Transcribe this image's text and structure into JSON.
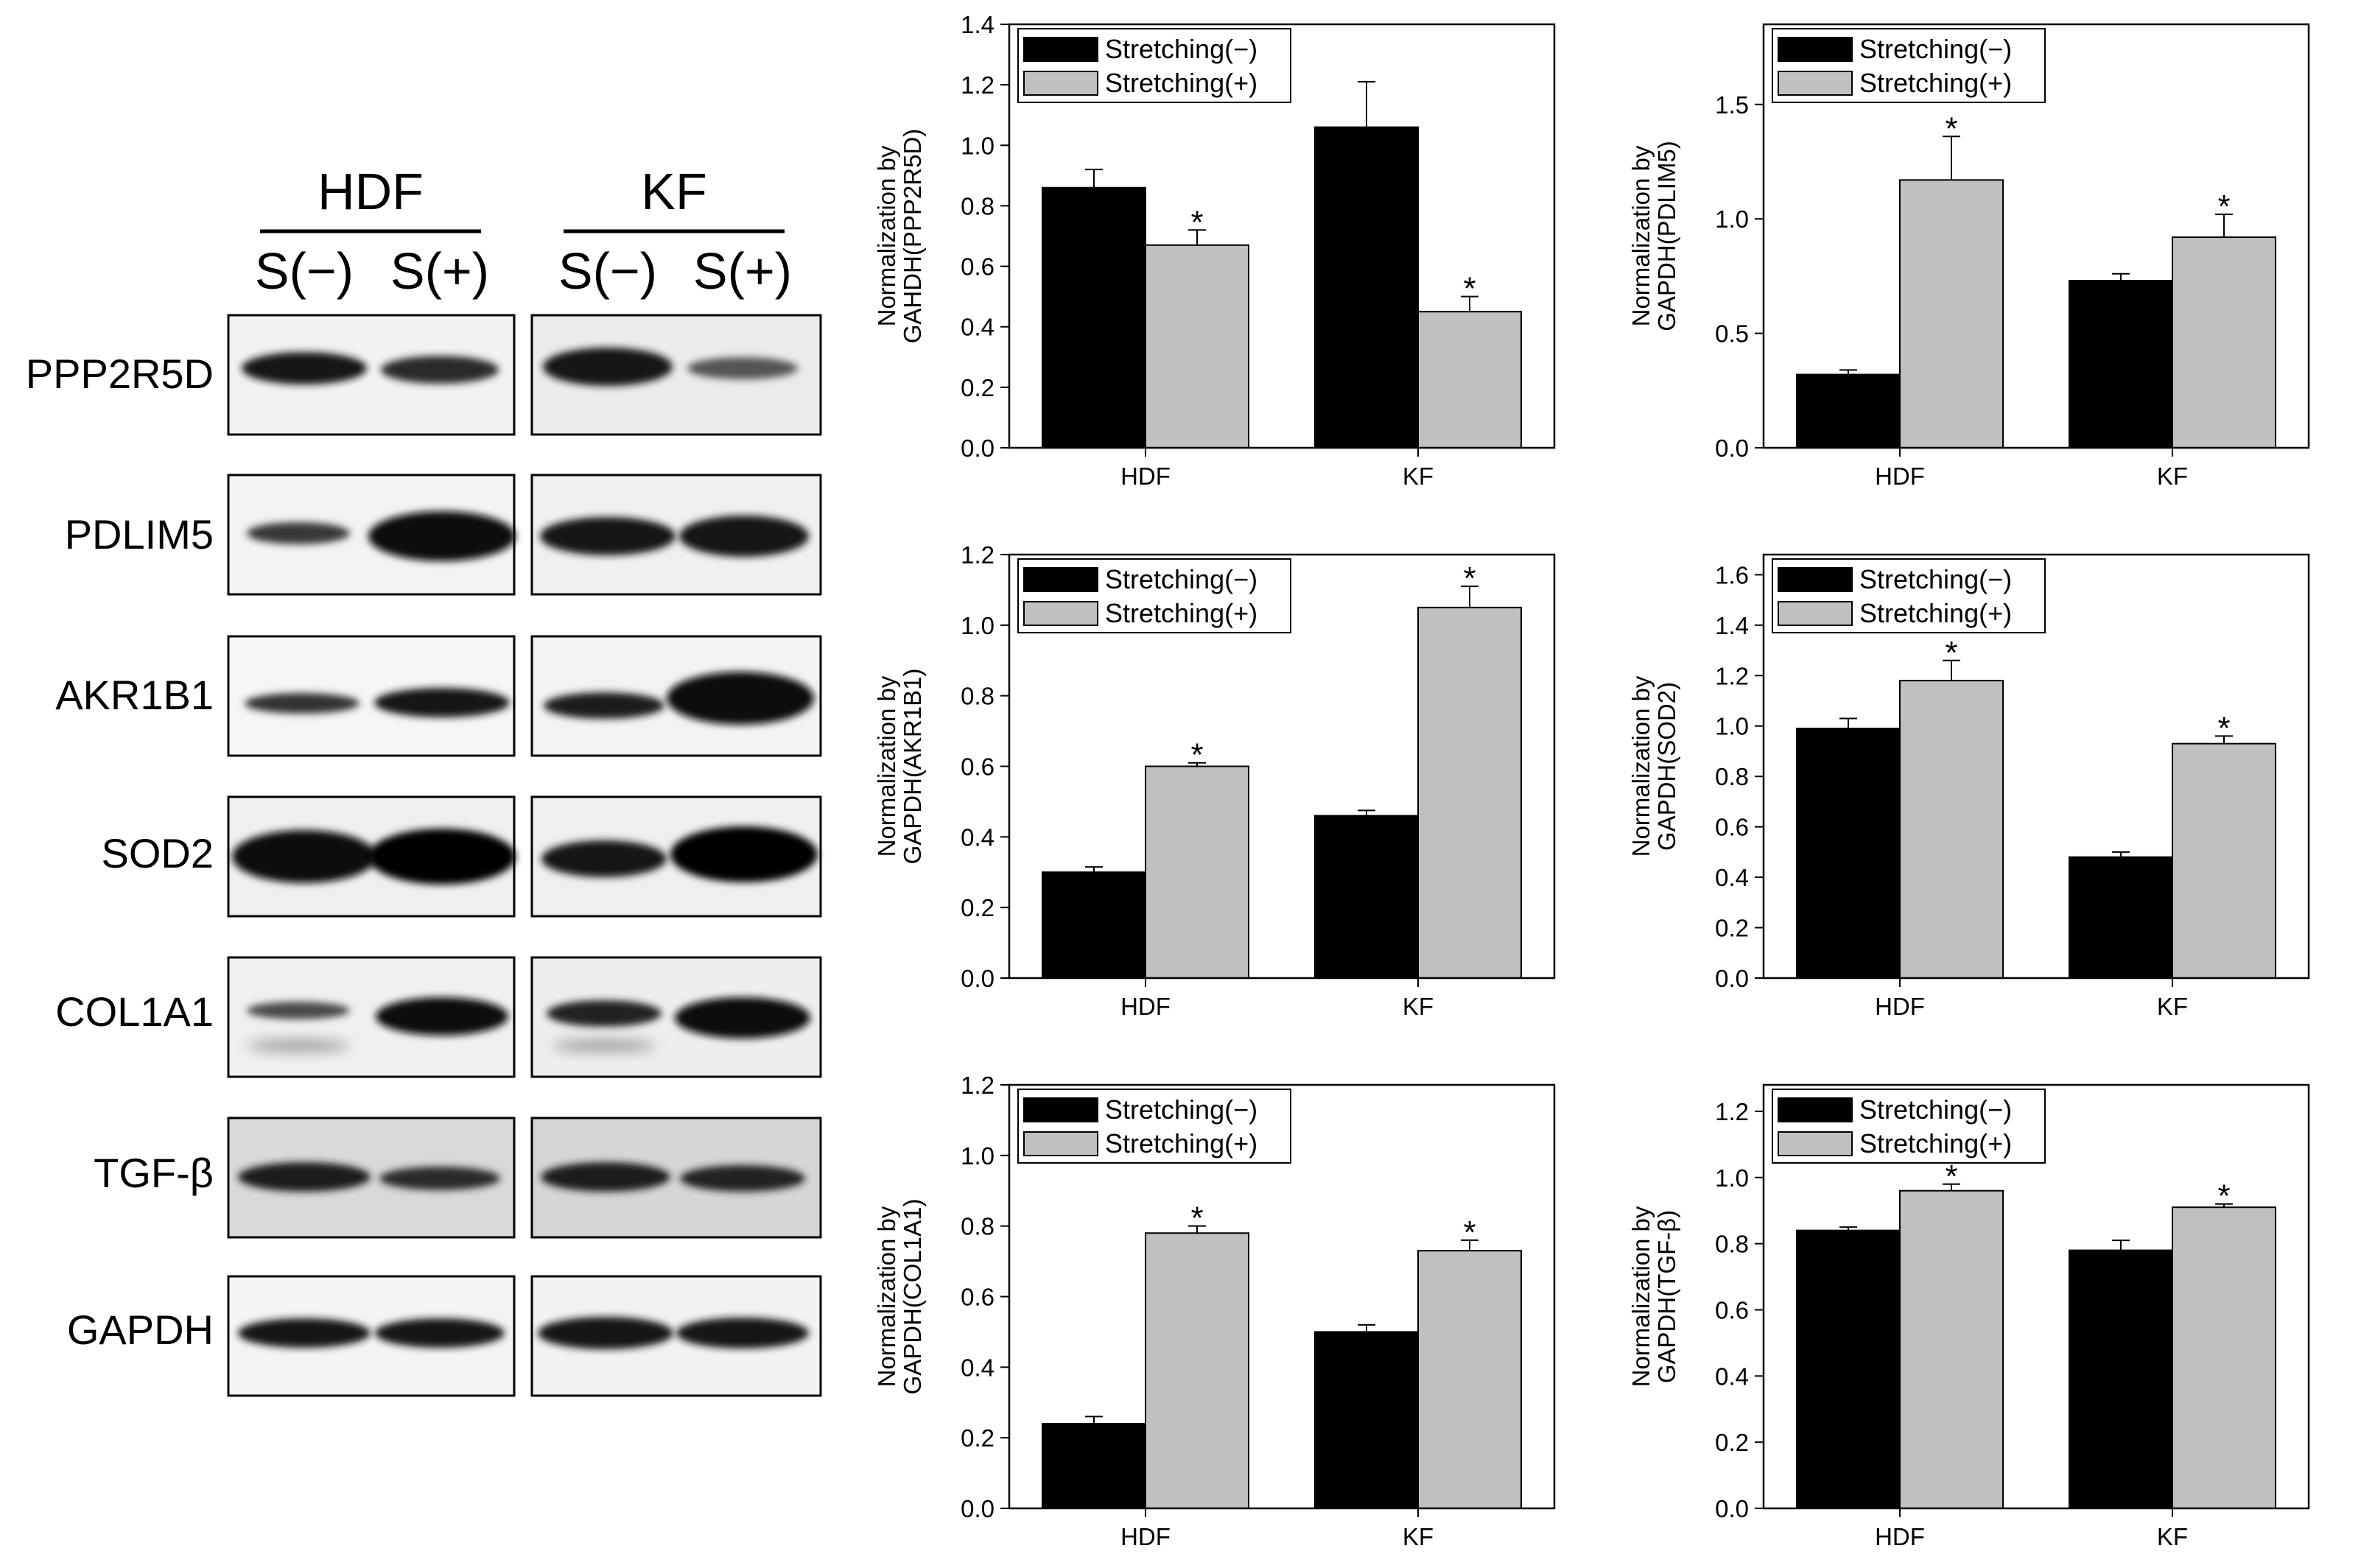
{
  "western_blot": {
    "groups": [
      "HDF",
      "KF"
    ],
    "conditions": [
      "S(−)",
      "S(+)",
      "S(−)",
      "S(+)"
    ],
    "proteins": [
      "PPP2R5D",
      "PDLIM5",
      "AKR1B1",
      "SOD2",
      "COL1A1",
      "TGF-β",
      "GAPDH"
    ]
  },
  "chart_data": [
    {
      "type": "bar",
      "categories": [
        "HDF",
        "KF"
      ],
      "ylabel_line1": "Normalization by",
      "ylabel_line2": "GAHDH(PPP2R5D)",
      "ylim": [
        0,
        1.4
      ],
      "yticks": [
        "0.0",
        "0.2",
        "0.4",
        "0.6",
        "0.8",
        "1.0",
        "1.2",
        "1.4"
      ],
      "legend_position": "top-left",
      "series": [
        {
          "name": "Stretching(−)",
          "color": "#000000",
          "values": [
            0.86,
            1.06
          ],
          "errors": [
            0.06,
            0.15
          ],
          "significance": [
            "",
            ""
          ]
        },
        {
          "name": "Stretching(+)",
          "color": "#c0c0c0",
          "values": [
            0.67,
            0.45
          ],
          "errors": [
            0.05,
            0.05
          ],
          "significance": [
            "*",
            "*"
          ]
        }
      ]
    },
    {
      "type": "bar",
      "categories": [
        "HDF",
        "KF"
      ],
      "ylabel_line1": "Normalization by",
      "ylabel_line2": "GAPDH(PDLIM5)",
      "ylim": [
        0,
        1.85
      ],
      "yticks": [
        "0.0",
        "0.5",
        "1.0",
        "1.5"
      ],
      "legend_position": "top-left",
      "series": [
        {
          "name": "Stretching(−)",
          "color": "#000000",
          "values": [
            0.32,
            0.73
          ],
          "errors": [
            0.02,
            0.03
          ],
          "significance": [
            "",
            ""
          ]
        },
        {
          "name": "Stretching(+)",
          "color": "#c0c0c0",
          "values": [
            1.17,
            0.92
          ],
          "errors": [
            0.19,
            0.1
          ],
          "significance": [
            "*",
            "*"
          ]
        }
      ]
    },
    {
      "type": "bar",
      "categories": [
        "HDF",
        "KF"
      ],
      "ylabel_line1": "Normalization by",
      "ylabel_line2": "GAPDH(AKR1B1)",
      "ylim": [
        0,
        1.2
      ],
      "yticks": [
        "0.0",
        "0.2",
        "0.4",
        "0.6",
        "0.8",
        "1.0",
        "1.2"
      ],
      "legend_position": "top-left",
      "series": [
        {
          "name": "Stretching(−)",
          "color": "#000000",
          "values": [
            0.3,
            0.46
          ],
          "errors": [
            0.015,
            0.015
          ],
          "significance": [
            "",
            ""
          ]
        },
        {
          "name": "Stretching(+)",
          "color": "#c0c0c0",
          "values": [
            0.6,
            1.05
          ],
          "errors": [
            0.01,
            0.06
          ],
          "significance": [
            "*",
            "*"
          ]
        }
      ]
    },
    {
      "type": "bar",
      "categories": [
        "HDF",
        "KF"
      ],
      "ylabel_line1": "Normalization by",
      "ylabel_line2": "GAPDH(SOD2)",
      "ylim": [
        0,
        1.68
      ],
      "yticks": [
        "0.0",
        "0.2",
        "0.4",
        "0.6",
        "0.8",
        "1.0",
        "1.2",
        "1.4",
        "1.6"
      ],
      "legend_position": "top-left",
      "series": [
        {
          "name": "Stretching(−)",
          "color": "#000000",
          "values": [
            0.99,
            0.48
          ],
          "errors": [
            0.04,
            0.02
          ],
          "significance": [
            "",
            ""
          ]
        },
        {
          "name": "Stretching(+)",
          "color": "#c0c0c0",
          "values": [
            1.18,
            0.93
          ],
          "errors": [
            0.08,
            0.03
          ],
          "significance": [
            "*",
            "*"
          ]
        }
      ]
    },
    {
      "type": "bar",
      "categories": [
        "HDF",
        "KF"
      ],
      "ylabel_line1": "Normalization by",
      "ylabel_line2": "GAPDH(COL1A1)",
      "ylim": [
        0,
        1.2
      ],
      "yticks": [
        "0.0",
        "0.2",
        "0.4",
        "0.6",
        "0.8",
        "1.0",
        "1.2"
      ],
      "legend_position": "top-left",
      "series": [
        {
          "name": "Stretching(−)",
          "color": "#000000",
          "values": [
            0.24,
            0.5
          ],
          "errors": [
            0.02,
            0.02
          ],
          "significance": [
            "",
            ""
          ]
        },
        {
          "name": "Stretching(+)",
          "color": "#c0c0c0",
          "values": [
            0.78,
            0.73
          ],
          "errors": [
            0.02,
            0.03
          ],
          "significance": [
            "*",
            "*"
          ]
        }
      ]
    },
    {
      "type": "bar",
      "categories": [
        "HDF",
        "KF"
      ],
      "ylabel_line1": "Normalization by",
      "ylabel_line2": "GAPDH(TGF-β)",
      "ylim": [
        0,
        1.28
      ],
      "yticks": [
        "0.0",
        "0.2",
        "0.4",
        "0.6",
        "0.8",
        "1.0",
        "1.2"
      ],
      "legend_position": "top-left",
      "series": [
        {
          "name": "Stretching(−)",
          "color": "#000000",
          "values": [
            0.84,
            0.78
          ],
          "errors": [
            0.01,
            0.03
          ],
          "significance": [
            "",
            ""
          ]
        },
        {
          "name": "Stretching(+)",
          "color": "#c0c0c0",
          "values": [
            0.96,
            0.91
          ],
          "errors": [
            0.02,
            0.01
          ],
          "significance": [
            "*",
            "*"
          ]
        }
      ]
    }
  ]
}
